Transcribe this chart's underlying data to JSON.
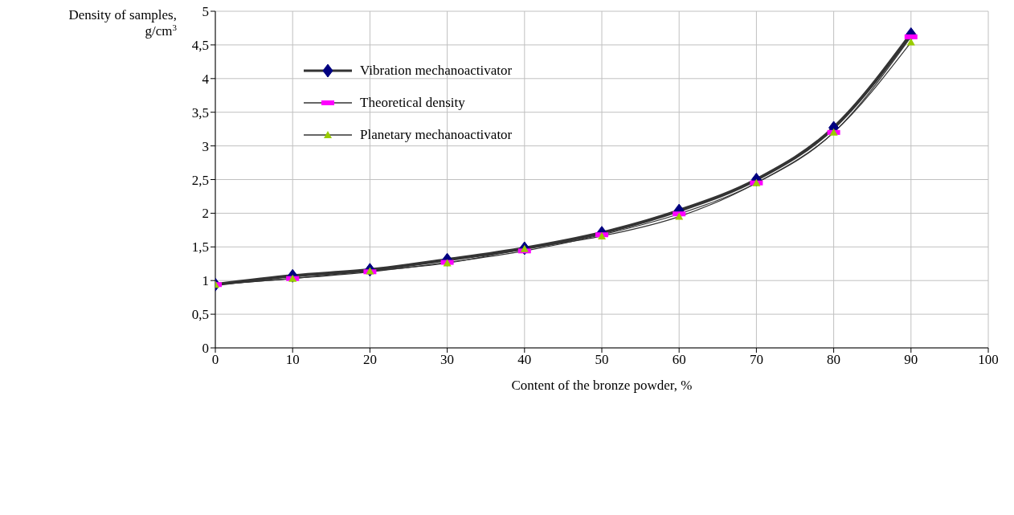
{
  "chart_data": {
    "type": "line",
    "xlabel": "Content of the bronze powder, %",
    "ylabel": "Density of samples, g/cm$^{3}$",
    "x": [
      0,
      10,
      20,
      30,
      40,
      50,
      60,
      70,
      80,
      90
    ],
    "series": [
      {
        "name": "Vibration mechanoactivator",
        "color": "#000080",
        "marker": "diamond",
        "values": [
          0.94,
          1.07,
          1.16,
          1.31,
          1.48,
          1.71,
          2.04,
          2.5,
          3.27,
          4.66
        ]
      },
      {
        "name": "Theoretical density",
        "color": "#ff00ff",
        "marker": "square",
        "values": [
          0.94,
          1.03,
          1.13,
          1.27,
          1.44,
          1.68,
          1.99,
          2.45,
          3.2,
          4.62
        ]
      },
      {
        "name": "Planetary mechanoactivator",
        "color": "#99cc00",
        "marker": "triangle",
        "values": [
          0.94,
          1.03,
          1.14,
          1.26,
          1.47,
          1.66,
          1.95,
          2.45,
          3.2,
          4.54
        ]
      }
    ],
    "xlim": [
      0,
      100
    ],
    "xticks": [
      0,
      10,
      20,
      30,
      40,
      50,
      60,
      70,
      80,
      90,
      100
    ],
    "ylim": [
      0,
      5
    ],
    "yticks": [
      0,
      {
        "value": 0.5,
        "label": "0,5"
      },
      1,
      {
        "value": 1.5,
        "label": "1,5"
      },
      2,
      {
        "value": 2.5,
        "label": "2,5"
      },
      3,
      {
        "value": 3.5,
        "label": "3,5"
      },
      4,
      {
        "value": 4.5,
        "label": "4,5"
      },
      5
    ],
    "grid": true,
    "legend": "top left",
    "line_style": "solid"
  }
}
